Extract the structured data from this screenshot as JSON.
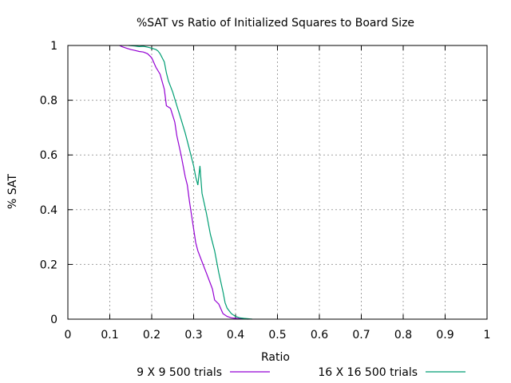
{
  "chart_data": {
    "type": "line",
    "title": "%SAT vs Ratio of Initialized Squares to Board Size",
    "xlabel": "Ratio",
    "ylabel": "% SAT",
    "xlim": [
      0,
      1
    ],
    "ylim": [
      0,
      1
    ],
    "grid": true,
    "legend_position": "bottom",
    "x_ticks": [
      "0",
      "0.1",
      "0.2",
      "0.3",
      "0.4",
      "0.5",
      "0.6",
      "0.7",
      "0.8",
      "0.9",
      "1"
    ],
    "y_ticks": [
      "0",
      "0.2",
      "0.4",
      "0.6",
      "0.8",
      "1"
    ],
    "colors": {
      "series1": "#9400d3",
      "series2": "#009e73",
      "grid": "#a0a0a0",
      "axis": "#000000"
    },
    "series": [
      {
        "name": "9 X 9 500 trials",
        "points": [
          [
            0.123,
            1.0
          ],
          [
            0.13,
            0.995
          ],
          [
            0.14,
            0.99
          ],
          [
            0.15,
            0.985
          ],
          [
            0.16,
            0.982
          ],
          [
            0.17,
            0.978
          ],
          [
            0.18,
            0.976
          ],
          [
            0.19,
            0.97
          ],
          [
            0.2,
            0.955
          ],
          [
            0.21,
            0.92
          ],
          [
            0.22,
            0.895
          ],
          [
            0.23,
            0.84
          ],
          [
            0.235,
            0.78
          ],
          [
            0.245,
            0.77
          ],
          [
            0.255,
            0.72
          ],
          [
            0.26,
            0.67
          ],
          [
            0.27,
            0.6
          ],
          [
            0.28,
            0.52
          ],
          [
            0.285,
            0.49
          ],
          [
            0.29,
            0.43
          ],
          [
            0.295,
            0.38
          ],
          [
            0.3,
            0.33
          ],
          [
            0.305,
            0.28
          ],
          [
            0.31,
            0.25
          ],
          [
            0.32,
            0.21
          ],
          [
            0.33,
            0.17
          ],
          [
            0.34,
            0.13
          ],
          [
            0.345,
            0.11
          ],
          [
            0.35,
            0.07
          ],
          [
            0.36,
            0.055
          ],
          [
            0.37,
            0.02
          ],
          [
            0.38,
            0.01
          ],
          [
            0.39,
            0.005
          ],
          [
            0.4,
            0.003
          ],
          [
            0.41,
            0.002
          ],
          [
            0.43,
            0.0
          ]
        ]
      },
      {
        "name": "16 X 16 500 trials",
        "points": [
          [
            0.145,
            1.0
          ],
          [
            0.16,
            0.998
          ],
          [
            0.17,
            0.996
          ],
          [
            0.18,
            0.997
          ],
          [
            0.19,
            0.994
          ],
          [
            0.2,
            0.99
          ],
          [
            0.21,
            0.985
          ],
          [
            0.215,
            0.98
          ],
          [
            0.22,
            0.97
          ],
          [
            0.225,
            0.955
          ],
          [
            0.23,
            0.94
          ],
          [
            0.235,
            0.9
          ],
          [
            0.24,
            0.87
          ],
          [
            0.25,
            0.83
          ],
          [
            0.26,
            0.78
          ],
          [
            0.27,
            0.73
          ],
          [
            0.28,
            0.68
          ],
          [
            0.29,
            0.62
          ],
          [
            0.3,
            0.56
          ],
          [
            0.305,
            0.52
          ],
          [
            0.31,
            0.49
          ],
          [
            0.315,
            0.56
          ],
          [
            0.32,
            0.46
          ],
          [
            0.33,
            0.39
          ],
          [
            0.34,
            0.31
          ],
          [
            0.35,
            0.25
          ],
          [
            0.36,
            0.17
          ],
          [
            0.37,
            0.1
          ],
          [
            0.375,
            0.06
          ],
          [
            0.38,
            0.04
          ],
          [
            0.39,
            0.02
          ],
          [
            0.4,
            0.01
          ],
          [
            0.41,
            0.005
          ],
          [
            0.42,
            0.003
          ],
          [
            0.44,
            0.0
          ]
        ]
      }
    ]
  }
}
